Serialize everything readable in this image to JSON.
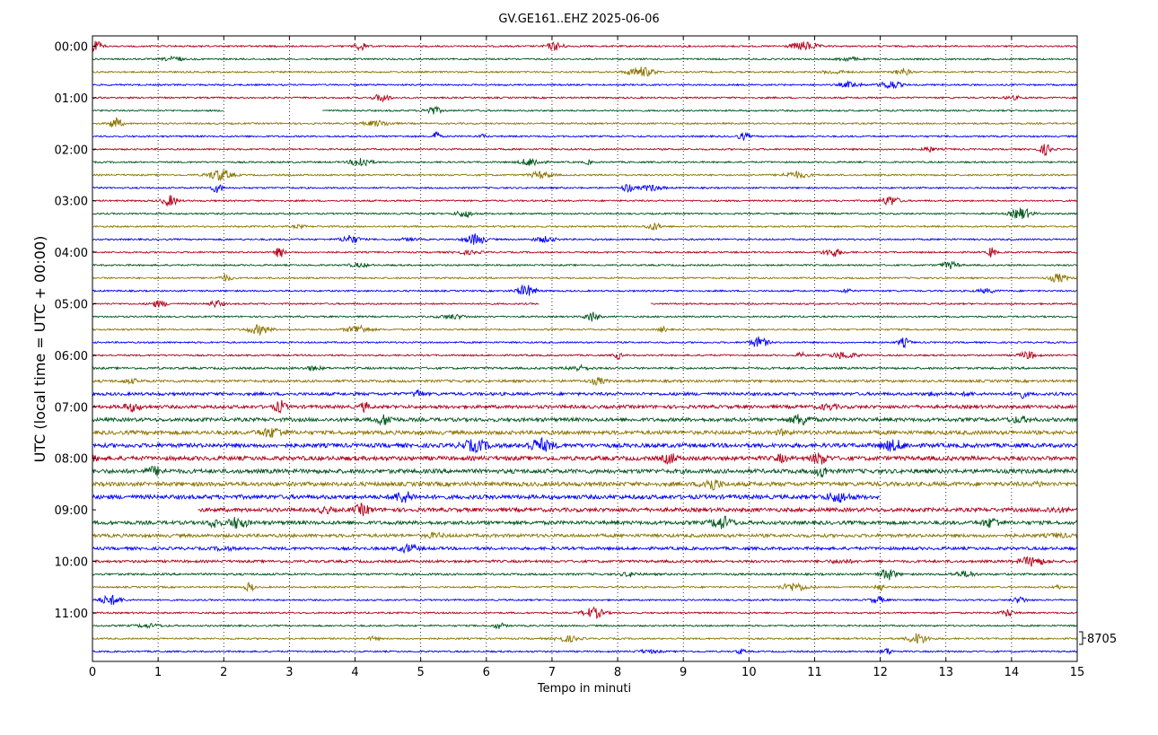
{
  "chart_data": {
    "type": "line",
    "title": "GV.GE161..EHZ 2025-06-06",
    "xlabel": "Tempo in minuti",
    "ylabel": "UTC (local time = UTC + 00:00)",
    "xlim": [
      0,
      15
    ],
    "x_ticks": [
      "0",
      "1",
      "2",
      "3",
      "4",
      "5",
      "6",
      "7",
      "8",
      "9",
      "10",
      "11",
      "12",
      "13",
      "14",
      "15"
    ],
    "y_tick_labels": [
      "00:00",
      "01:00",
      "02:00",
      "03:00",
      "04:00",
      "05:00",
      "06:00",
      "07:00",
      "08:00",
      "09:00",
      "10:00",
      "11:00"
    ],
    "grid": "vertical dotted",
    "scale_label": "8705",
    "trace_colors": [
      "#b2001a",
      "#00561c",
      "#8c7400",
      "#0000ff"
    ],
    "traces_per_hour": 4,
    "trace_count": 48,
    "gaps": [
      {
        "row": 5,
        "from_min": 2.0,
        "to_min": 3.5
      },
      {
        "row": 20,
        "from_min": 6.8,
        "to_min": 8.5
      },
      {
        "row": 35,
        "from_min": 12.0,
        "to_min": 15.0
      },
      {
        "row": 36,
        "from_min": 0.0,
        "to_min": 1.6
      }
    ]
  }
}
